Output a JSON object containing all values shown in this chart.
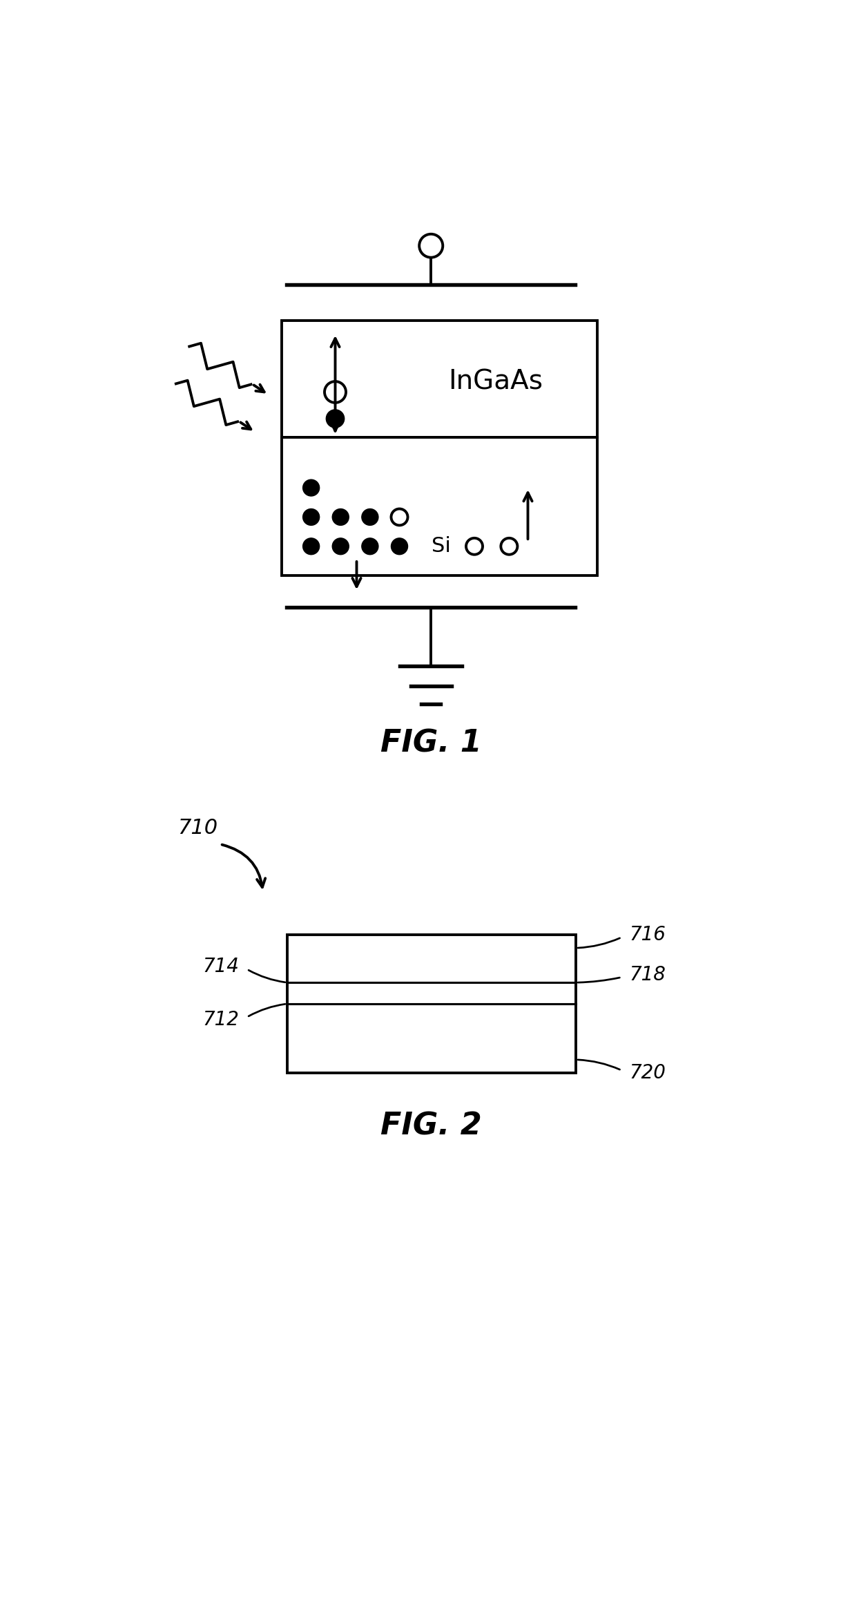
{
  "fig_width": 12.18,
  "fig_height": 23.42,
  "bg_color": "#ffffff",
  "fig1_label": "FIG. 1",
  "fig2_label": "FIG. 2",
  "ingaas_label": "InGaAs",
  "si_label": "Si",
  "label_710": "710",
  "label_712": "712",
  "label_714": "714",
  "label_716": "716",
  "label_718": "718",
  "label_720": "720"
}
